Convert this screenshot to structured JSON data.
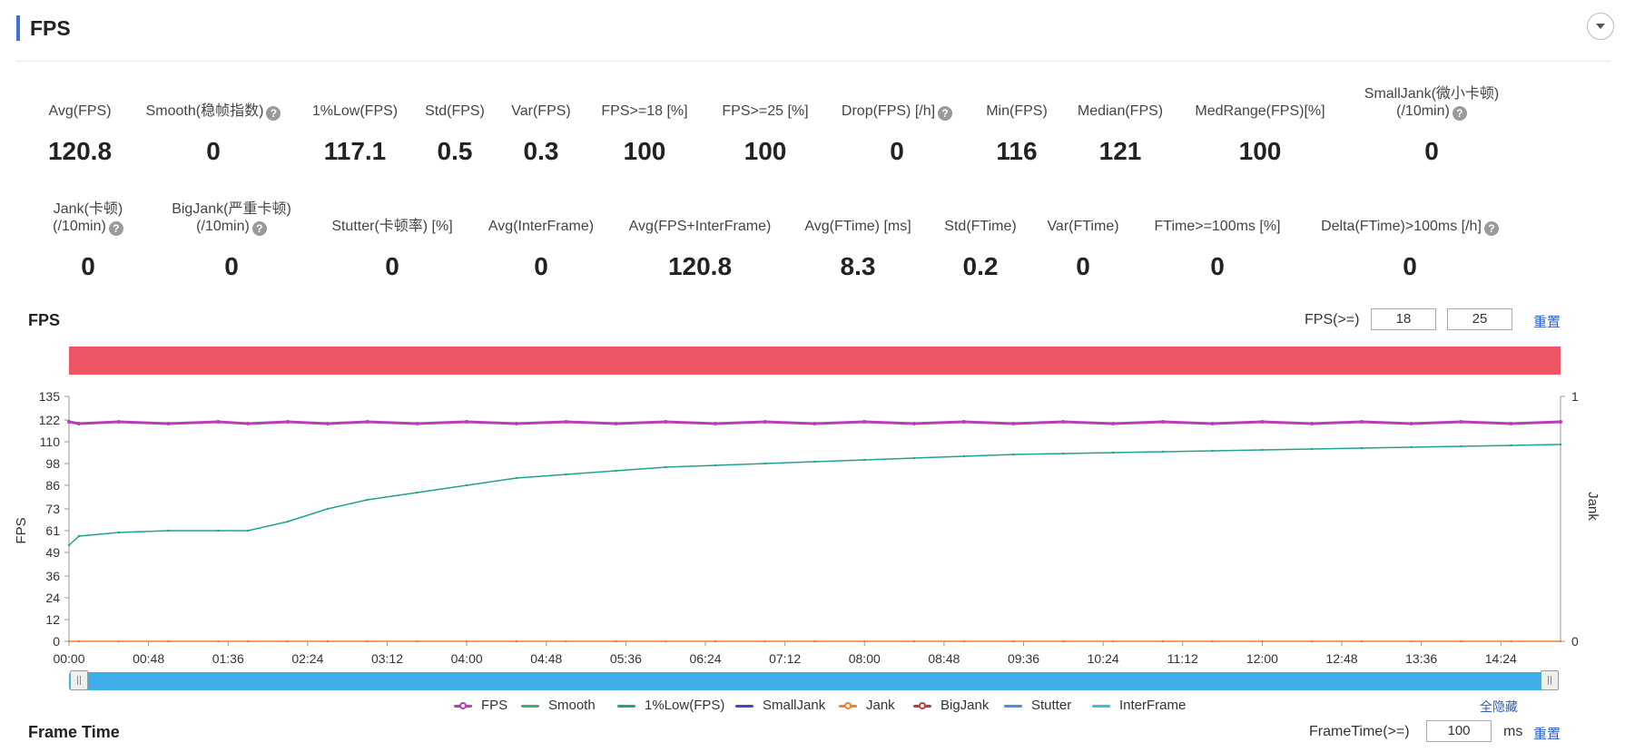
{
  "section": {
    "title": "FPS"
  },
  "stats_row1": [
    {
      "label": "Avg(FPS)",
      "value": "120.8",
      "help": false
    },
    {
      "label": "Smooth(稳帧指数)",
      "value": "0",
      "help": true
    },
    {
      "label": "1%Low(FPS)",
      "value": "117.1",
      "help": false
    },
    {
      "label": "Std(FPS)",
      "value": "0.5",
      "help": false
    },
    {
      "label": "Var(FPS)",
      "value": "0.3",
      "help": false
    },
    {
      "label": "FPS>=18 [%]",
      "value": "100",
      "help": false
    },
    {
      "label": "FPS>=25 [%]",
      "value": "100",
      "help": false
    },
    {
      "label": "Drop(FPS) [/h]",
      "value": "0",
      "help": true
    },
    {
      "label": "Min(FPS)",
      "value": "116",
      "help": false
    },
    {
      "label": "Median(FPS)",
      "value": "121",
      "help": false
    },
    {
      "label": "MedRange(FPS)[%]",
      "value": "100",
      "help": false
    },
    {
      "label": "SmallJank(微小卡顿)",
      "label2": "(/10min)",
      "value": "0",
      "help": true
    }
  ],
  "stats_row2": [
    {
      "label": "Jank(卡顿)",
      "label2": "(/10min)",
      "value": "0",
      "help": true
    },
    {
      "label": "BigJank(严重卡顿)",
      "label2": "(/10min)",
      "value": "0",
      "help": true
    },
    {
      "label": "Stutter(卡顿率) [%]",
      "value": "0",
      "help": false
    },
    {
      "label": "Avg(InterFrame)",
      "value": "0",
      "help": false
    },
    {
      "label": "Avg(FPS+InterFrame)",
      "value": "120.8",
      "help": false
    },
    {
      "label": "Avg(FTime) [ms]",
      "value": "8.3",
      "help": false
    },
    {
      "label": "Std(FTime)",
      "value": "0.2",
      "help": false
    },
    {
      "label": "Var(FTime)",
      "value": "0",
      "help": false
    },
    {
      "label": "FTime>=100ms [%]",
      "value": "0",
      "help": false
    },
    {
      "label": "Delta(FTime)>100ms [/h]",
      "value": "0",
      "help": true
    }
  ],
  "fps_chart": {
    "title": "FPS",
    "threshold_label": "FPS(>=)",
    "threshold_1": "18",
    "threshold_2": "25",
    "reset_label": "重置"
  },
  "chart_data": {
    "type": "line",
    "title": "FPS",
    "xlabel": "",
    "ylabel": "FPS",
    "y2label": "Jank",
    "ylim": [
      0,
      135
    ],
    "y2lim": [
      0,
      1
    ],
    "yticks": [
      "135",
      "122",
      "110",
      "98",
      "86",
      "73",
      "61",
      "49",
      "36",
      "24",
      "12",
      "0"
    ],
    "y2ticks": [
      "1",
      "0"
    ],
    "x_ticks": [
      "00:00",
      "00:48",
      "01:36",
      "02:24",
      "03:12",
      "04:00",
      "04:48",
      "05:36",
      "06:24",
      "07:12",
      "08:00",
      "08:48",
      "09:36",
      "10:24",
      "11:12",
      "12:00",
      "12:48",
      "13:36",
      "14:24"
    ],
    "x_minutes": [
      0,
      0.1,
      0.5,
      1,
      1.5,
      1.8,
      2.2,
      2.6,
      3,
      3.5,
      4,
      4.5,
      5,
      5.5,
      6,
      6.5,
      7,
      7.5,
      8,
      8.5,
      9,
      9.5,
      10,
      10.5,
      11,
      11.5,
      12,
      12.5,
      13,
      13.5,
      14,
      14.5,
      15
    ],
    "series": [
      {
        "name": "FPS",
        "color": "#b73eb7",
        "values": [
          121,
          120,
          121,
          120,
          121,
          120,
          121,
          120,
          121,
          120,
          121,
          120,
          121,
          120,
          121,
          120,
          121,
          120,
          121,
          120,
          121,
          120,
          121,
          120,
          121,
          120,
          121,
          120,
          121,
          120,
          121,
          120,
          121
        ]
      },
      {
        "name": "1%Low(FPS)",
        "color": "#22a28e",
        "values": [
          53,
          58,
          60,
          61,
          61,
          61,
          66,
          73,
          78,
          82,
          86,
          90,
          92,
          94,
          96,
          97,
          98,
          99,
          100,
          101,
          102,
          103,
          103.5,
          104,
          104.5,
          105,
          105.5,
          106,
          106.5,
          107,
          107.5,
          108,
          108.5
        ]
      },
      {
        "name": "Jank",
        "color": "#f07f2f",
        "values": [
          0,
          0,
          0,
          0,
          0,
          0,
          0,
          0,
          0,
          0,
          0,
          0,
          0,
          0,
          0,
          0,
          0,
          0,
          0,
          0,
          0,
          0,
          0,
          0,
          0,
          0,
          0,
          0,
          0,
          0,
          0,
          0,
          0
        ]
      }
    ],
    "legend": [
      {
        "name": "FPS",
        "color": "#b73eb7",
        "marker": true
      },
      {
        "name": "Smooth",
        "color": "#3fb36b",
        "marker": false
      },
      {
        "name": "1%Low(FPS)",
        "color": "#22a28e",
        "marker": false
      },
      {
        "name": "SmallJank",
        "color": "#3f47c8",
        "marker": false
      },
      {
        "name": "Jank",
        "color": "#f07f2f",
        "marker": true
      },
      {
        "name": "BigJank",
        "color": "#c23c37",
        "marker": true
      },
      {
        "name": "Stutter",
        "color": "#4a90e2",
        "marker": false
      },
      {
        "name": "InterFrame",
        "color": "#36c3d8",
        "marker": false
      }
    ]
  },
  "legend_toggle_label": "全隐藏",
  "frame_time": {
    "title": "Frame Time",
    "threshold_label": "FrameTime(>=)",
    "threshold_value": "100",
    "unit": "ms",
    "reset_label": "重置"
  }
}
